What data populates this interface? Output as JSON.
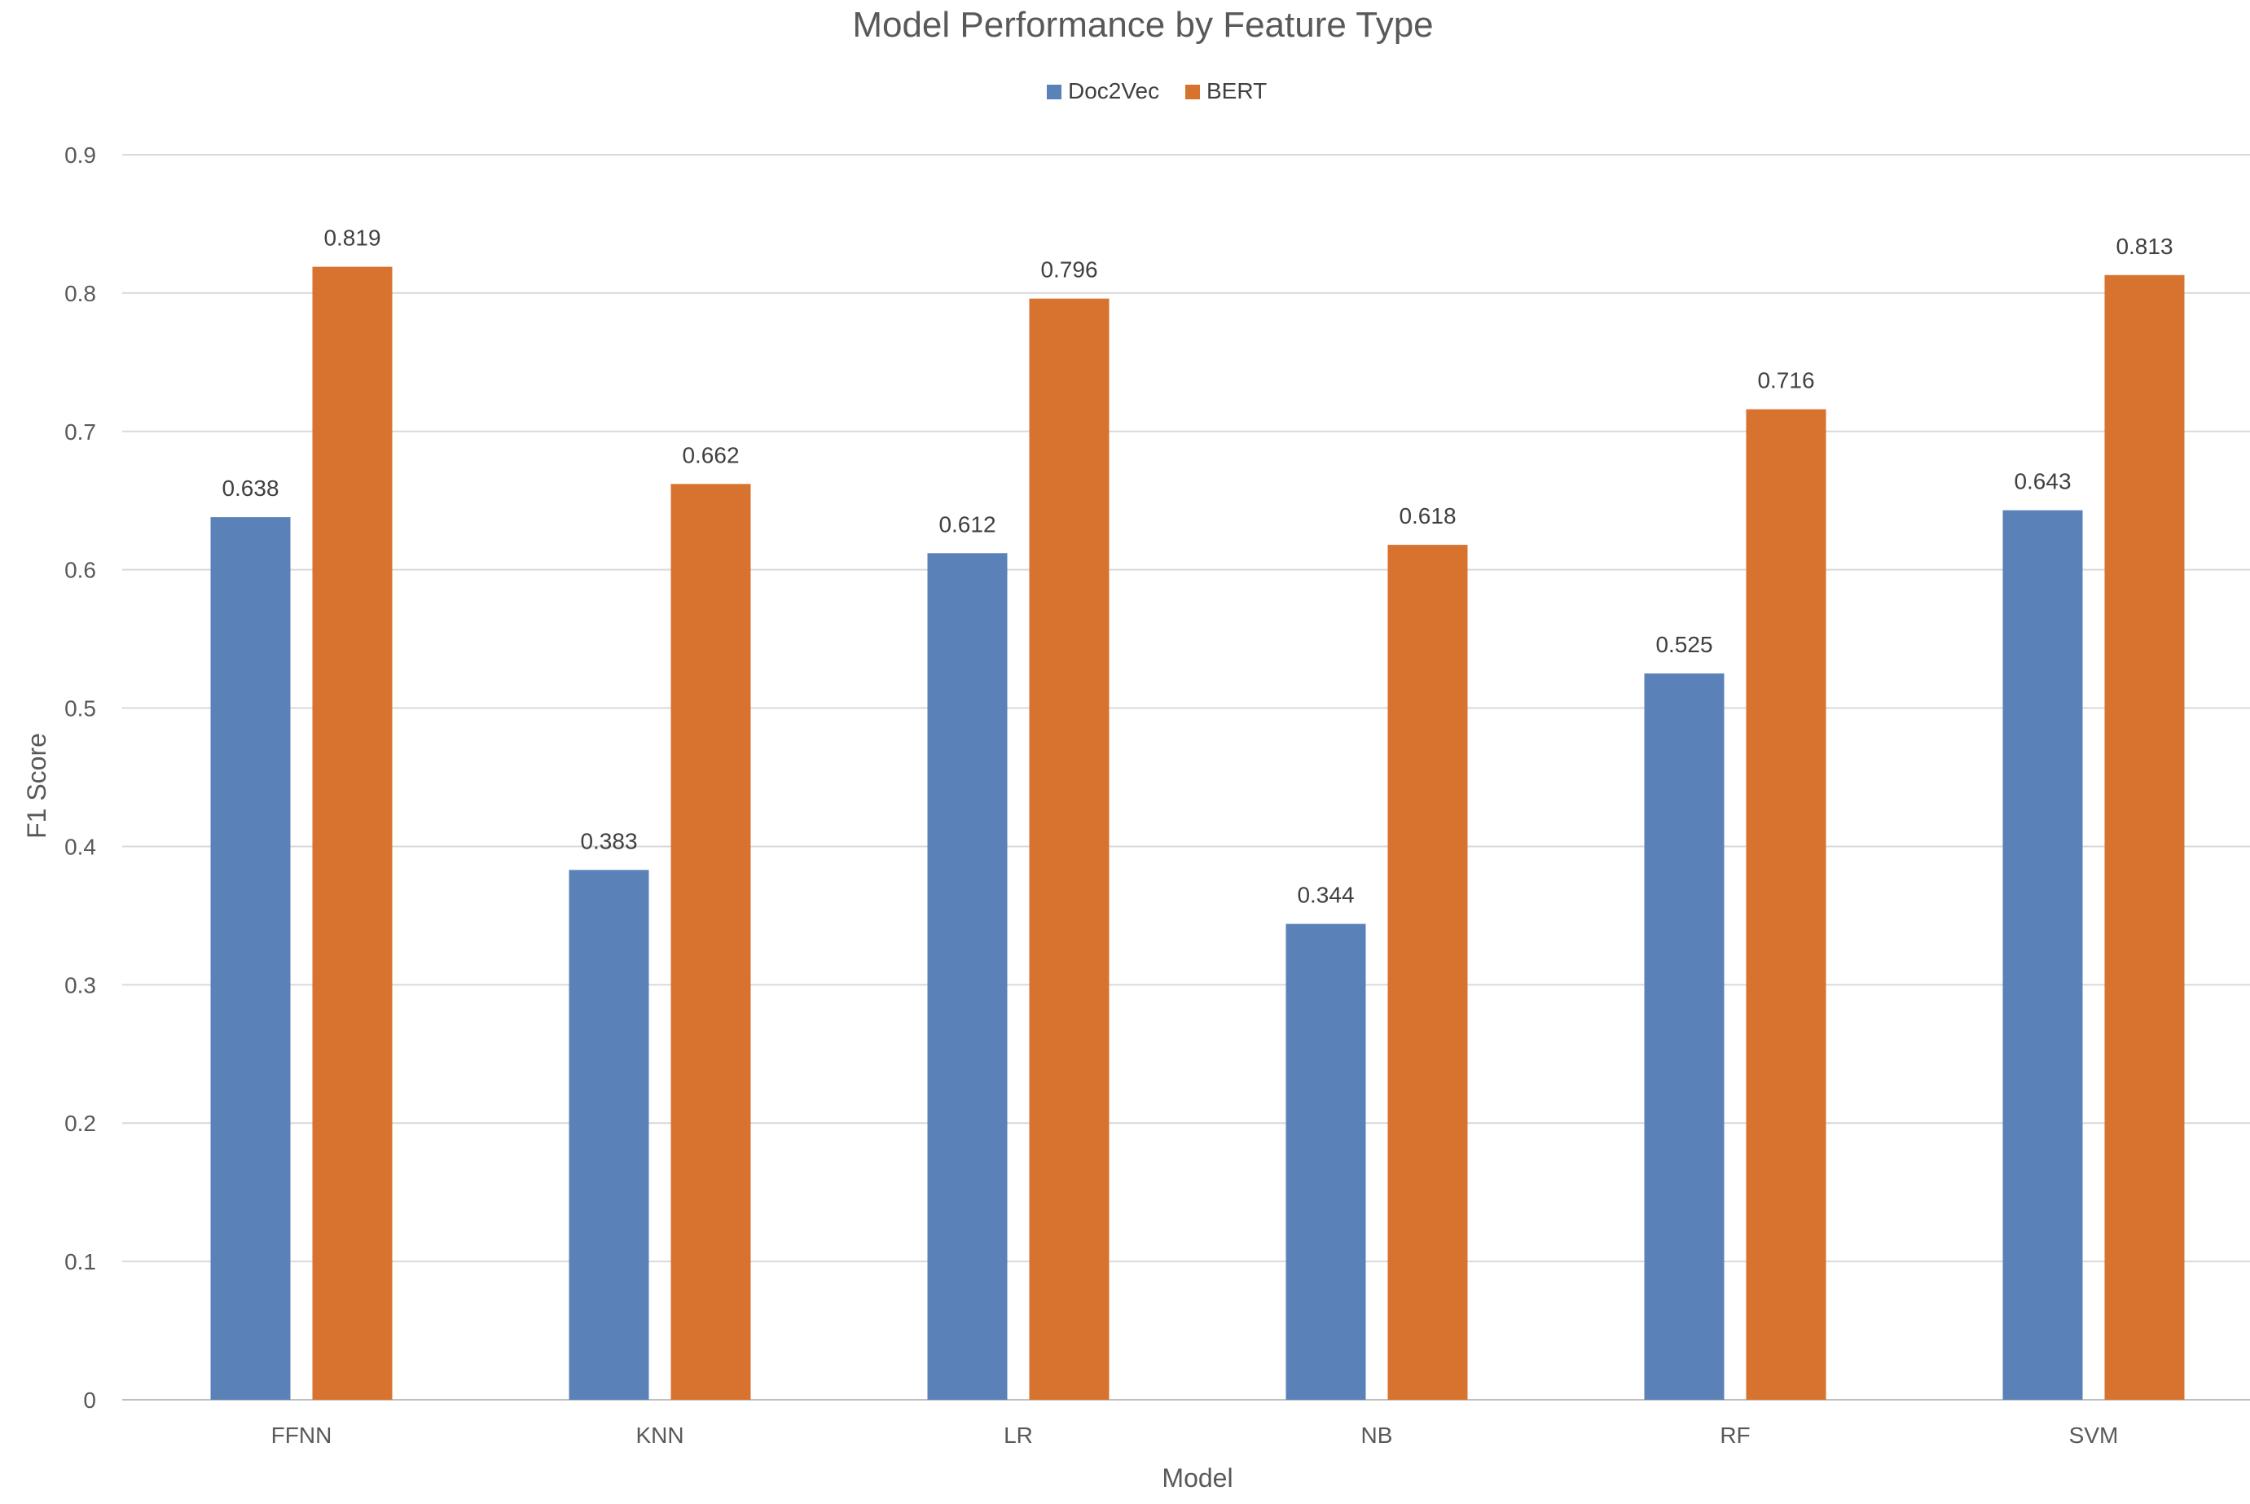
{
  "chart_data": {
    "type": "bar",
    "title": "Model Performance by Feature Type",
    "xlabel": "Model",
    "ylabel": "F1 Score",
    "categories": [
      "FFNN",
      "KNN",
      "LR",
      "NB",
      "RF",
      "SVM"
    ],
    "series": [
      {
        "name": "Doc2Vec",
        "color": "#5a81b8",
        "values": [
          0.638,
          0.383,
          0.612,
          0.344,
          0.525,
          0.643
        ]
      },
      {
        "name": "BERT",
        "color": "#d8722f",
        "values": [
          0.819,
          0.662,
          0.796,
          0.618,
          0.716,
          0.813
        ]
      }
    ],
    "ylim": [
      0,
      0.9
    ],
    "yticks": [
      "0",
      "0.1",
      "0.2",
      "0.3",
      "0.4",
      "0.5",
      "0.6",
      "0.7",
      "0.8",
      "0.9"
    ],
    "grid": true,
    "legend_position": "top-center",
    "data_labels": true
  }
}
